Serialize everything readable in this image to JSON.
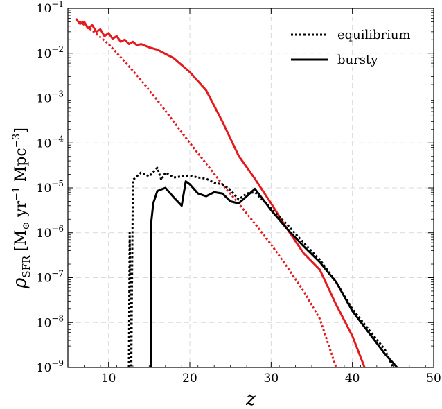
{
  "chart_data": {
    "type": "line",
    "xlabel": "z",
    "ylabel": {
      "main": "ρ",
      "sub": "SFR",
      "units": "[M",
      "units_sun": "⊙",
      "units_yr": " yr",
      "units_yr_exp": "−1",
      "units_mpc": " Mpc",
      "units_mpc_exp": "−3",
      "units_close": "]"
    },
    "xlim": [
      5,
      50
    ],
    "ylim": [
      1e-09,
      0.1
    ],
    "yscale": "log",
    "grid": true,
    "legend_position": "top-right",
    "x_ticks": [
      {
        "value": 10,
        "label": "10"
      },
      {
        "value": 20,
        "label": "20"
      },
      {
        "value": 30,
        "label": "30"
      },
      {
        "value": 40,
        "label": "40"
      },
      {
        "value": 50,
        "label": "50"
      }
    ],
    "y_ticks": [
      {
        "value": 1e-09,
        "base": "10",
        "exp": "−9"
      },
      {
        "value": 1e-08,
        "base": "10",
        "exp": "−8"
      },
      {
        "value": 1e-07,
        "base": "10",
        "exp": "−7"
      },
      {
        "value": 1e-06,
        "base": "10",
        "exp": "−6"
      },
      {
        "value": 1e-05,
        "base": "10",
        "exp": "−5"
      },
      {
        "value": 0.0001,
        "base": "10",
        "exp": "−4"
      },
      {
        "value": 0.001,
        "base": "10",
        "exp": "−3"
      },
      {
        "value": 0.01,
        "base": "10",
        "exp": "−2"
      },
      {
        "value": 0.1,
        "base": "10",
        "exp": "−1"
      }
    ],
    "legend": [
      {
        "label": "equilibrium",
        "style": "dotted",
        "color": "#000000"
      },
      {
        "label": "bursty",
        "style": "solid",
        "color": "#000000"
      }
    ],
    "series": [
      {
        "color": "#e41a1c",
        "style": "dotted",
        "x": [
          6,
          8,
          10,
          12,
          14,
          16,
          18,
          20,
          22,
          24,
          26,
          28,
          30,
          32,
          34,
          36,
          38
        ],
        "y": [
          0.058,
          0.032,
          0.016,
          0.0065,
          0.0025,
          0.0009,
          0.0003,
          0.0001,
          3.5e-05,
          1.2e-05,
          4.5e-06,
          1.6e-06,
          5.5e-07,
          1.7e-07,
          5e-08,
          1.2e-08,
          9e-10
        ]
      },
      {
        "color": "#e41a1c",
        "style": "solid",
        "x": [
          6,
          6.5,
          7,
          7.5,
          8,
          8.5,
          9,
          9.5,
          10,
          10.5,
          11,
          11.5,
          12,
          12.5,
          13,
          13.5,
          14,
          15,
          16,
          18,
          20,
          22,
          24,
          26,
          28,
          30,
          32,
          34,
          36,
          38,
          40,
          41.5
        ],
        "y": [
          0.058,
          0.045,
          0.05,
          0.036,
          0.042,
          0.03,
          0.034,
          0.024,
          0.028,
          0.021,
          0.024,
          0.018,
          0.02,
          0.016,
          0.018,
          0.015,
          0.016,
          0.0135,
          0.012,
          0.0078,
          0.0038,
          0.0015,
          0.0003,
          5.2e-05,
          1.6e-05,
          4.5e-06,
          1.2e-06,
          3.5e-07,
          1.5e-07,
          2.5e-08,
          5e-09,
          9e-10
        ]
      },
      {
        "color": "#000000",
        "style": "dotted",
        "x": [
          12.5,
          12.6,
          12.8,
          13,
          14,
          15,
          16,
          16.5,
          17,
          18,
          19,
          20,
          21,
          22,
          23,
          24,
          25,
          26,
          27,
          28,
          30,
          32,
          34,
          36,
          38,
          40,
          42,
          44,
          45
        ],
        "y": [
          9e-10,
          1e-06,
          9e-10,
          1.5e-05,
          2.2e-05,
          1.8e-05,
          2.8e-05,
          1.5e-05,
          2.2e-05,
          1.7e-05,
          1.8e-05,
          1.9e-05,
          1.7e-05,
          1.6e-05,
          1.3e-05,
          1.2e-05,
          9e-06,
          5.5e-06,
          7.5e-06,
          8e-06,
          3.5e-06,
          1.5e-06,
          6e-07,
          2.5e-07,
          8e-08,
          2e-08,
          7e-09,
          2.5e-09,
          9e-10
        ]
      },
      {
        "color": "#000000",
        "style": "solid",
        "x": [
          15.2,
          15.25,
          15.5,
          16,
          17,
          18,
          19,
          19.5,
          20,
          21,
          22,
          23,
          24,
          25,
          26,
          27,
          28,
          30,
          32,
          34,
          36,
          38,
          40,
          42,
          44,
          45.5
        ],
        "y": [
          9e-10,
          1.7e-06,
          4.5e-06,
          8.5e-06,
          1e-05,
          6.2e-06,
          4e-06,
          1.4e-05,
          1.2e-05,
          7.5e-06,
          6.5e-06,
          8e-06,
          7.5e-06,
          5e-06,
          4.5e-06,
          6.5e-06,
          9.5e-06,
          3.2e-06,
          1.2e-06,
          5e-07,
          2.2e-07,
          8e-08,
          1.8e-08,
          6e-09,
          2e-09,
          9e-10
        ]
      }
    ]
  }
}
